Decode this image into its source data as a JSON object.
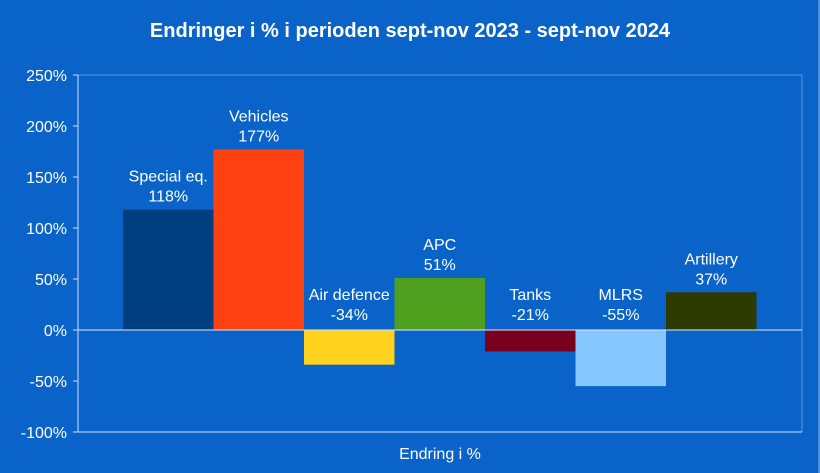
{
  "chart_data": {
    "type": "bar",
    "title": "Endringer i % i perioden sept-nov 2023 - sept-nov 2024",
    "xlabel": "Endring i %",
    "ylabel": "",
    "ylim": [
      -100,
      250
    ],
    "yticks": [
      250,
      200,
      150,
      100,
      50,
      0,
      -50,
      -100
    ],
    "ytick_labels": [
      "250%",
      "200%",
      "150%",
      "100%",
      "50%",
      "0%",
      "-50%",
      "-100%"
    ],
    "grid": false,
    "legend": "none",
    "series": [
      {
        "category": "Special eq.",
        "value": 118,
        "label": "118%",
        "color": "#003f7f"
      },
      {
        "category": "Vehicles",
        "value": 177,
        "label": "177%",
        "color": "#ff4010"
      },
      {
        "category": "Air defence",
        "value": -34,
        "label": "-34%",
        "color": "#ffd21e"
      },
      {
        "category": "APC",
        "value": 51,
        "label": "51%",
        "color": "#4f9e1e"
      },
      {
        "category": "Tanks",
        "value": -21,
        "label": "-21%",
        "color": "#7a0020"
      },
      {
        "category": "MLRS",
        "value": -55,
        "label": "-55%",
        "color": "#86c7ff"
      },
      {
        "category": "Artillery",
        "value": 37,
        "label": "37%",
        "color": "#2e3b00"
      }
    ]
  }
}
